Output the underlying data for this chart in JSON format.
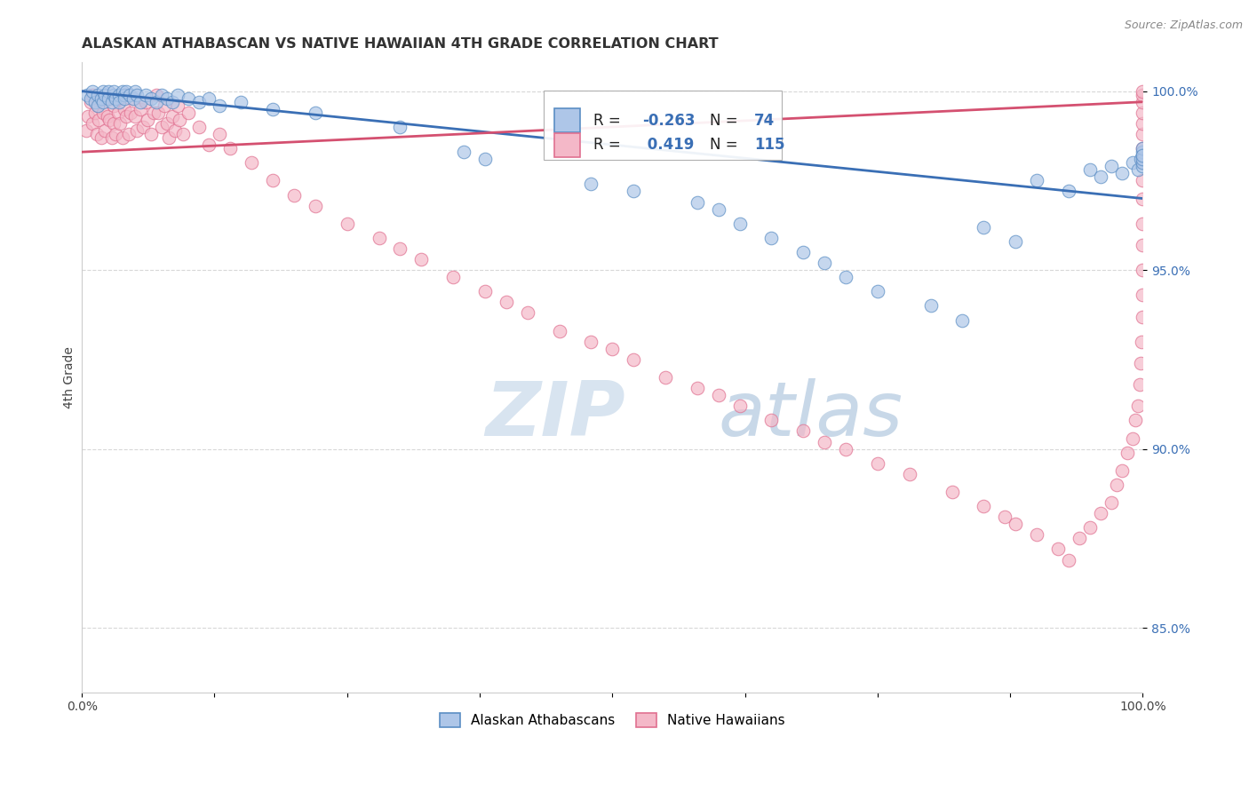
{
  "title": "ALASKAN ATHABASCAN VS NATIVE HAWAIIAN 4TH GRADE CORRELATION CHART",
  "source": "Source: ZipAtlas.com",
  "ylabel": "4th Grade",
  "xlim": [
    0.0,
    1.0
  ],
  "ylim": [
    0.832,
    1.008
  ],
  "yticks": [
    0.85,
    0.9,
    0.95,
    1.0
  ],
  "ytick_labels": [
    "85.0%",
    "90.0%",
    "95.0%",
    "100.0%"
  ],
  "blue_color": "#aec6e8",
  "pink_color": "#f4b8c8",
  "blue_edge_color": "#5b8ec4",
  "pink_edge_color": "#e07090",
  "blue_line_color": "#3a6fb5",
  "pink_line_color": "#d45070",
  "legend_blue_R": "-0.263",
  "legend_blue_N": "74",
  "legend_pink_R": "0.419",
  "legend_pink_N": "115",
  "background_color": "#ffffff",
  "grid_color": "#d8d8d8",
  "blue_scatter_x": [
    0.005,
    0.008,
    0.01,
    0.012,
    0.015,
    0.015,
    0.018,
    0.02,
    0.02,
    0.022,
    0.025,
    0.025,
    0.028,
    0.03,
    0.03,
    0.032,
    0.035,
    0.035,
    0.038,
    0.04,
    0.04,
    0.042,
    0.045,
    0.048,
    0.05,
    0.052,
    0.055,
    0.06,
    0.065,
    0.07,
    0.075,
    0.08,
    0.085,
    0.09,
    0.1,
    0.11,
    0.12,
    0.13,
    0.15,
    0.18,
    0.22,
    0.3,
    0.36,
    0.38,
    0.48,
    0.52,
    0.58,
    0.6,
    0.62,
    0.65,
    0.68,
    0.7,
    0.72,
    0.75,
    0.8,
    0.83,
    0.85,
    0.88,
    0.9,
    0.93,
    0.95,
    0.96,
    0.97,
    0.98,
    0.99,
    0.995,
    0.998,
    1.0,
    1.0,
    1.0,
    1.0,
    1.0,
    1.0,
    1.0
  ],
  "blue_scatter_y": [
    0.999,
    0.998,
    1.0,
    0.997,
    0.999,
    0.996,
    0.998,
    1.0,
    0.997,
    0.999,
    1.0,
    0.998,
    0.997,
    0.999,
    1.0,
    0.998,
    0.999,
    0.997,
    1.0,
    0.999,
    0.998,
    1.0,
    0.999,
    0.998,
    1.0,
    0.999,
    0.997,
    0.999,
    0.998,
    0.997,
    0.999,
    0.998,
    0.997,
    0.999,
    0.998,
    0.997,
    0.998,
    0.996,
    0.997,
    0.995,
    0.994,
    0.99,
    0.983,
    0.981,
    0.974,
    0.972,
    0.969,
    0.967,
    0.963,
    0.959,
    0.955,
    0.952,
    0.948,
    0.944,
    0.94,
    0.936,
    0.962,
    0.958,
    0.975,
    0.972,
    0.978,
    0.976,
    0.979,
    0.977,
    0.98,
    0.978,
    0.981,
    0.979,
    0.982,
    0.98,
    0.983,
    0.981,
    0.984,
    0.982
  ],
  "pink_scatter_x": [
    0.004,
    0.006,
    0.008,
    0.01,
    0.01,
    0.012,
    0.014,
    0.015,
    0.016,
    0.018,
    0.02,
    0.02,
    0.022,
    0.024,
    0.025,
    0.026,
    0.028,
    0.03,
    0.03,
    0.032,
    0.034,
    0.035,
    0.036,
    0.038,
    0.04,
    0.04,
    0.042,
    0.044,
    0.046,
    0.048,
    0.05,
    0.052,
    0.055,
    0.058,
    0.06,
    0.062,
    0.065,
    0.068,
    0.07,
    0.072,
    0.075,
    0.078,
    0.08,
    0.082,
    0.085,
    0.088,
    0.09,
    0.092,
    0.095,
    0.1,
    0.11,
    0.12,
    0.13,
    0.14,
    0.16,
    0.18,
    0.2,
    0.22,
    0.25,
    0.28,
    0.3,
    0.32,
    0.35,
    0.38,
    0.4,
    0.42,
    0.45,
    0.48,
    0.5,
    0.52,
    0.55,
    0.58,
    0.6,
    0.62,
    0.65,
    0.68,
    0.7,
    0.72,
    0.75,
    0.78,
    0.82,
    0.85,
    0.87,
    0.88,
    0.9,
    0.92,
    0.93,
    0.94,
    0.95,
    0.96,
    0.97,
    0.975,
    0.98,
    0.985,
    0.99,
    0.993,
    0.995,
    0.997,
    0.998,
    0.999,
    1.0,
    1.0,
    1.0,
    1.0,
    1.0,
    1.0,
    1.0,
    1.0,
    1.0,
    1.0,
    1.0,
    1.0,
    1.0,
    1.0,
    1.0
  ],
  "pink_scatter_y": [
    0.989,
    0.993,
    0.997,
    0.991,
    0.999,
    0.994,
    0.988,
    0.996,
    0.992,
    0.987,
    0.998,
    0.994,
    0.989,
    0.993,
    0.998,
    0.992,
    0.987,
    0.996,
    0.991,
    0.988,
    0.994,
    0.998,
    0.991,
    0.987,
    0.995,
    0.999,
    0.993,
    0.988,
    0.994,
    0.998,
    0.993,
    0.989,
    0.995,
    0.99,
    0.997,
    0.992,
    0.988,
    0.994,
    0.999,
    0.994,
    0.99,
    0.996,
    0.991,
    0.987,
    0.993,
    0.989,
    0.996,
    0.992,
    0.988,
    0.994,
    0.99,
    0.985,
    0.988,
    0.984,
    0.98,
    0.975,
    0.971,
    0.968,
    0.963,
    0.959,
    0.956,
    0.953,
    0.948,
    0.944,
    0.941,
    0.938,
    0.933,
    0.93,
    0.928,
    0.925,
    0.92,
    0.917,
    0.915,
    0.912,
    0.908,
    0.905,
    0.902,
    0.9,
    0.896,
    0.893,
    0.888,
    0.884,
    0.881,
    0.879,
    0.876,
    0.872,
    0.869,
    0.875,
    0.878,
    0.882,
    0.885,
    0.89,
    0.894,
    0.899,
    0.903,
    0.908,
    0.912,
    0.918,
    0.924,
    0.93,
    0.937,
    0.943,
    0.95,
    0.957,
    0.963,
    0.97,
    0.975,
    0.98,
    0.984,
    0.988,
    0.991,
    0.994,
    0.997,
    0.999,
    1.0
  ],
  "blue_trend_x": [
    0.0,
    1.0
  ],
  "blue_trend_y": [
    1.0,
    0.97
  ],
  "pink_trend_x": [
    0.0,
    1.0
  ],
  "pink_trend_y": [
    0.983,
    0.997
  ]
}
